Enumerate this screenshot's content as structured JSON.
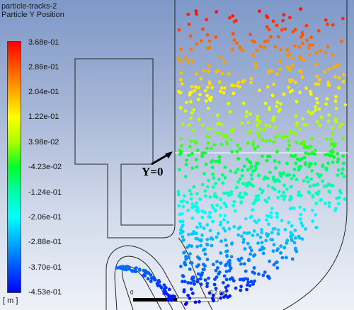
{
  "title": "particle-tracks-2",
  "subtitle": "Particle Y Position",
  "colorbar": {
    "labels": [
      "3.68e-01",
      "2.86e-01",
      "2.04e-01",
      "1.22e-01",
      "3.98e-02",
      "-4.23e-02",
      "-1.24e-01",
      "-2.06e-01",
      "-2.88e-01",
      "-3.70e-01",
      "-4.53e-01"
    ],
    "colors": [
      "#ff0000",
      "#ff5500",
      "#ffaa00",
      "#ffff00",
      "#aaff00",
      "#00ff2a",
      "#00ffaa",
      "#00ffff",
      "#00aaff",
      "#0055ff",
      "#0000ff"
    ],
    "unit": "[ m ]"
  },
  "annotation": {
    "y_zero": "Y=0"
  },
  "scale_bar": {
    "start": "0",
    "end": "0.2 (m)"
  },
  "colors": {
    "background_top": "#7e98c8",
    "background_bottom": "#eef1f7",
    "geometry_line": "#222222",
    "y0_line": "#ffffff"
  }
}
